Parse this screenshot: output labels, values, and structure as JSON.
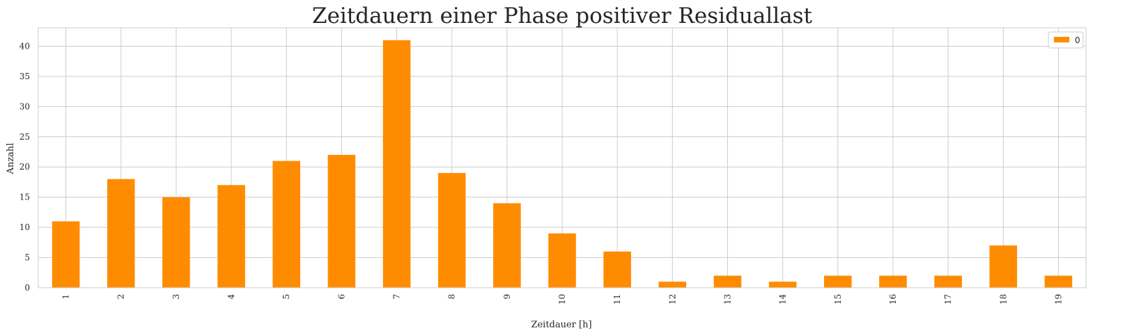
{
  "chart_data": {
    "type": "bar",
    "title": "Zeitdauern einer Phase positiver Residuallast",
    "xlabel": "Zeitdauer [h]",
    "ylabel": "Anzahl",
    "categories": [
      "1",
      "2",
      "3",
      "4",
      "5",
      "6",
      "7",
      "8",
      "9",
      "10",
      "11",
      "12",
      "13",
      "14",
      "15",
      "16",
      "17",
      "18",
      "19"
    ],
    "series": [
      {
        "name": "0",
        "values": [
          11,
          18,
          15,
          17,
          21,
          22,
          41,
          19,
          14,
          9,
          6,
          1,
          2,
          1,
          2,
          2,
          2,
          7,
          2
        ]
      }
    ],
    "ylim": [
      0,
      43.05
    ],
    "yticks": [
      0,
      5,
      10,
      15,
      20,
      25,
      30,
      35,
      40
    ],
    "grid": true,
    "legend_position": "top-right",
    "bar_color": "#ff8c00"
  }
}
